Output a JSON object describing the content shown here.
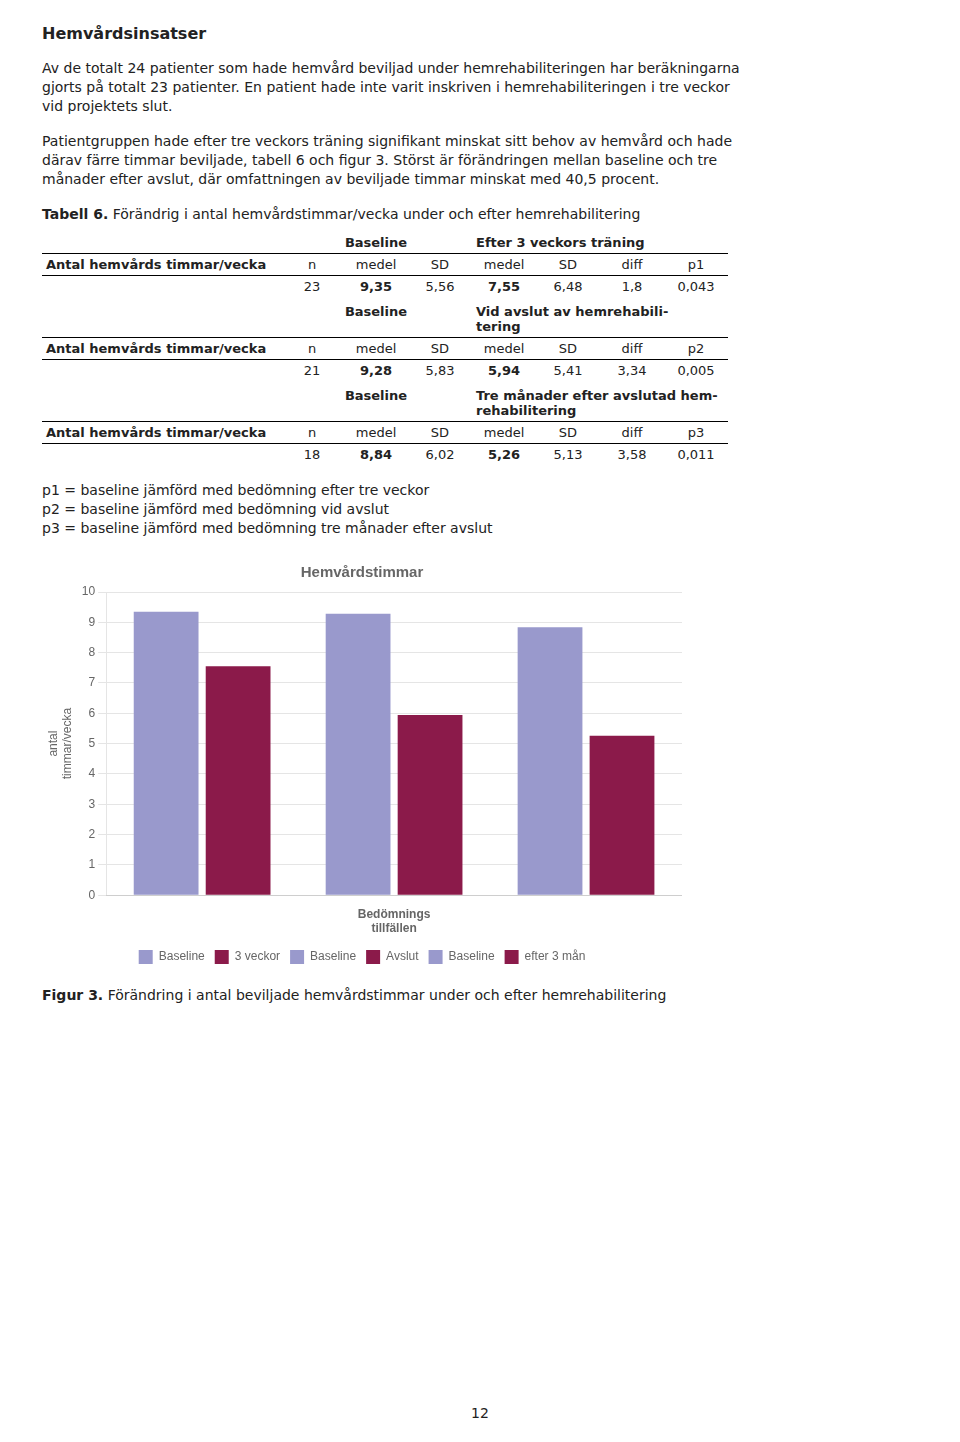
{
  "chart_data": {
    "type": "bar",
    "title": "Hemvårdstimmar",
    "ylabel": [
      "antal",
      "timmar/vecka"
    ],
    "xlabel": "Bedömnings\ntillfällen",
    "categories": [
      null,
      null,
      null
    ],
    "series": [
      {
        "name": "Baseline",
        "color": "#9999CC",
        "values": [
          9.35,
          null,
          null
        ]
      },
      {
        "name": "3 veckor",
        "color": "#8B1A4A",
        "values": [
          7.55,
          null,
          null
        ]
      },
      {
        "name": "Baseline",
        "color": "#9999CC",
        "values": [
          null,
          9.28,
          null
        ]
      },
      {
        "name": "Avslut",
        "color": "#8B1A4A",
        "values": [
          null,
          5.94,
          null
        ]
      },
      {
        "name": "Baseline",
        "color": "#9999CC",
        "values": [
          null,
          null,
          8.84
        ]
      },
      {
        "name": "efter 3 mån",
        "color": "#8B1A4A",
        "values": [
          null,
          null,
          5.26
        ]
      }
    ],
    "ylim": [
      0,
      10
    ],
    "yticks": [
      0,
      1,
      2,
      3,
      4,
      5,
      6,
      7,
      8,
      9,
      10
    ],
    "grid": true,
    "legend": "bottom",
    "tick_labels": "y",
    "annotations": [
      [
        [
          {
            "bold": "Hemvårdsinsatser"
          }
        ],
        [
          "Av de totalt 24 patienter som hade hemvård beviljad under hemrehabiliteringen har beräkningarna",
          "gjorts på totalt 23 patienter. En patient hade inte varit inskriven i hemrehabiliteringen i tre veckor",
          "vid projektets slut."
        ],
        [
          "Patientgruppen hade efter tre veckors träning signifikant minskat sitt behov av hemvård och hade",
          "därav färre timmar beviljade, tabell 6 och figur 3. Störst är förändringen mellan baseline och tre",
          "månader efter avslut, där omfattningen av beviljade timmar minskat med 40,5 procent."
        ],
        [
          {
            "bold": "Tabell 6.",
            "text": "Förändrig i antal hemvårdstimmar/vecka under och efter hemrehabilitering"
          },
          {
            "header_left": "Baseline",
            "header_right": [
              "Efter 3 veckors träning"
            ],
            "columns": [
              "Antal hemvårds timmar/vecka",
              "n",
              "medel",
              "SD",
              "medel",
              "SD",
              "diff",
              "p1"
            ],
            "cells": [
              "23",
              "9,35",
              "5,56",
              "7,55",
              "6,48",
              "1,8",
              "0,043"
            ]
          },
          {
            "header_left": "Baseline",
            "header_right": [
              "Vid avslut av hemrehabili-",
              "tering"
            ],
            "columns": [
              "Antal hemvårds timmar/vecka",
              "n",
              "medel",
              "SD",
              "medel",
              "SD",
              "diff",
              "p2"
            ],
            "cells": [
              "21",
              "9,28",
              "5,83",
              "5,94",
              "5,41",
              "3,34",
              "0,005"
            ]
          },
          {
            "header_left": "Baseline",
            "header_right": [
              "Tre månader efter avslutad hem-",
              "rehabilitering"
            ],
            "columns": [
              "Antal hemvårds timmar/vecka",
              "n",
              "medel",
              "SD",
              "medel",
              "SD",
              "diff",
              "p3"
            ],
            "cells": [
              "18",
              "8,84",
              "6,02",
              "5,26",
              "5,13",
              "3,58",
              "0,011"
            ]
          }
        ],
        [
          "p1 = baseline jämförd med bedömning efter tre veckor",
          "p2 = baseline jämförd med bedömning vid avslut",
          "p3 = baseline jämförd med bedömning tre månader efter avslut"
        ]
      ],
      [
        [
          {
            "bold": "Figur 3.",
            "text": "Förändring i antal beviljade hemvårdstimmar under och efter hemrehabilitering"
          }
        ]
      ],
      [
        [
          "12"
        ]
      ]
    ]
  }
}
